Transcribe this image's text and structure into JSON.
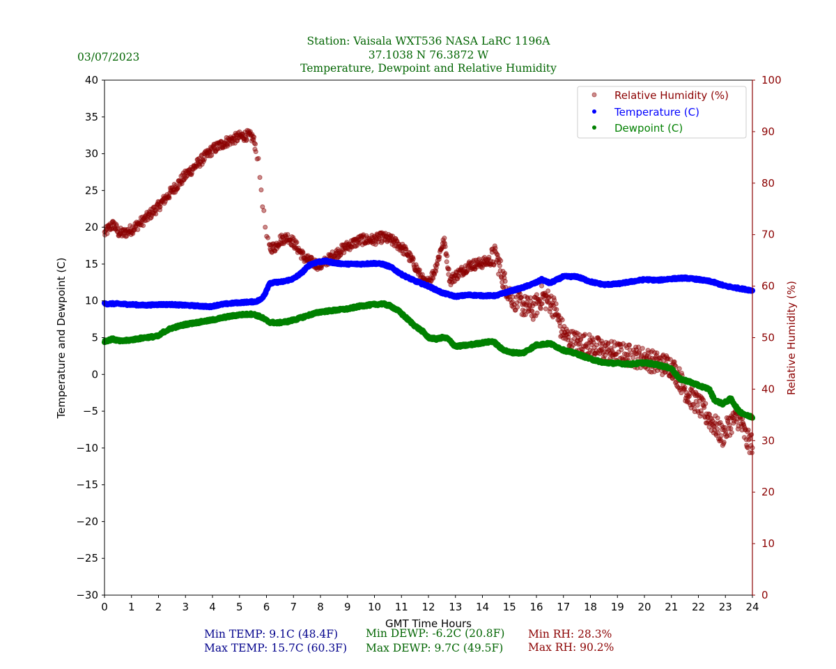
{
  "header": {
    "date": "03/07/2023",
    "title_lines": [
      "Station:  Vaisala WXT536  NASA LaRC 1196A",
      "37.1038 N 76.3872 W",
      "Temperature, Dewpoint and Relative Humidity"
    ]
  },
  "stats": {
    "min_temp": "Min TEMP: 9.1C (48.4F)",
    "max_temp": "Max TEMP: 15.7C (60.3F)",
    "min_dewp": "Min DEWP: -6.2C (20.8F)",
    "max_dewp": "Max DEWP: 9.7C (49.5F)",
    "min_rh": "Min RH: 28.3%",
    "max_rh": "Max RH: 90.2%"
  },
  "colors": {
    "temperature": "#0000ff",
    "dewpoint": "#008000",
    "rh": "#8b0000",
    "text_green": "#006400",
    "text_blue": "#00008b"
  },
  "chart_data": {
    "type": "scatter",
    "title": "Temperature, Dewpoint and Relative Humidity",
    "xlabel": "GMT Time Hours",
    "ylabel": "Temperature and Dewpoint (C)",
    "y2label": "Relative Humidity (%)",
    "xlim": [
      0,
      24
    ],
    "ylim": [
      -30,
      40
    ],
    "y2lim": [
      0,
      100
    ],
    "xticks": [
      "0",
      "1",
      "2",
      "3",
      "4",
      "5",
      "6",
      "7",
      "8",
      "9",
      "10",
      "11",
      "12",
      "13",
      "14",
      "15",
      "16",
      "17",
      "18",
      "19",
      "20",
      "21",
      "22",
      "23",
      "24"
    ],
    "yticks": [
      "40",
      "35",
      "30",
      "25",
      "20",
      "15",
      "10",
      "5",
      "0",
      "−5",
      "−10",
      "−15",
      "−20",
      "−25",
      "−30"
    ],
    "y2ticks": [
      "100",
      "90",
      "80",
      "70",
      "60",
      "50",
      "40",
      "30",
      "20",
      "10",
      "0"
    ],
    "legend": {
      "position": "top-right",
      "entries": [
        "Relative Humidity (%)",
        "Temperature (C)",
        "Dewpoint (C)"
      ]
    },
    "series": [
      {
        "name": "Relative Humidity (%)",
        "axis": "right",
        "x": [
          0,
          0.2,
          0.35,
          0.5,
          0.7,
          1.0,
          1.5,
          2.0,
          2.5,
          3.0,
          3.5,
          4.0,
          4.5,
          5.0,
          5.3,
          5.5,
          5.6,
          5.7,
          5.8,
          5.9,
          6.0,
          6.1,
          6.3,
          6.5,
          6.8,
          7.0,
          7.2,
          7.4,
          7.6,
          8.0,
          8.5,
          9.0,
          9.5,
          10.0,
          10.3,
          10.6,
          10.9,
          11.2,
          11.5,
          11.7,
          11.9,
          12.2,
          12.4,
          12.5,
          12.6,
          12.8,
          13.0,
          13.5,
          14.0,
          14.3,
          14.5,
          14.8,
          15.0,
          15.3,
          15.6,
          15.9,
          16.2,
          16.5,
          16.7,
          16.9,
          17.2,
          17.6,
          18.0,
          18.5,
          19.0,
          19.5,
          20.0,
          20.5,
          21.0,
          21.3,
          21.6,
          22.0,
          22.3,
          22.6,
          22.9,
          23.2,
          23.5,
          23.8,
          24.0
        ],
        "y": [
          70.2,
          71.5,
          72,
          70.5,
          70.2,
          71,
          73,
          75.5,
          78.5,
          81.5,
          84,
          86.5,
          88,
          89,
          89.3,
          88.8,
          87,
          84,
          79,
          74,
          69.5,
          67.5,
          67.5,
          69,
          69.5,
          68.5,
          67,
          65.5,
          64.8,
          64,
          66,
          67.8,
          69,
          69,
          69.5,
          69,
          68,
          66.5,
          64,
          62,
          60.2,
          62.5,
          66,
          68,
          68.5,
          61,
          62,
          64,
          64.5,
          65,
          66,
          61,
          58.5,
          57,
          56,
          55.5,
          58,
          57,
          55.5,
          52,
          49.5,
          49,
          48.5,
          47.5,
          47,
          46.5,
          46,
          45,
          44.5,
          42,
          39,
          37,
          35,
          33,
          31,
          33.5,
          34.5,
          30,
          29.5
        ],
        "jitter": 1.0
      },
      {
        "name": "Temperature (C)",
        "axis": "left",
        "x": [
          0,
          0.5,
          1.0,
          1.5,
          2.0,
          2.5,
          3.0,
          3.5,
          3.9,
          4.3,
          4.8,
          5.2,
          5.6,
          5.8,
          5.95,
          6.1,
          6.3,
          6.6,
          7.0,
          7.3,
          7.6,
          7.9,
          8.2,
          8.6,
          9.0,
          9.5,
          10.0,
          10.3,
          10.6,
          11.0,
          11.5,
          12.0,
          12.5,
          13.0,
          13.5,
          14.0,
          14.5,
          15.0,
          15.5,
          16.0,
          16.2,
          16.5,
          17.0,
          17.5,
          18.0,
          18.5,
          19.0,
          19.5,
          20.0,
          20.5,
          21.0,
          21.5,
          22.0,
          22.5,
          23.0,
          23.5,
          24.0
        ],
        "y": [
          9.6,
          9.6,
          9.5,
          9.4,
          9.5,
          9.5,
          9.4,
          9.3,
          9.2,
          9.5,
          9.7,
          9.8,
          9.9,
          10.2,
          11,
          12.3,
          12.5,
          12.6,
          13,
          13.8,
          14.9,
          15.3,
          15.4,
          15.1,
          15.0,
          15.0,
          15.1,
          15.0,
          14.6,
          13.6,
          12.7,
          12.0,
          11.1,
          10.6,
          10.8,
          10.7,
          10.7,
          11.3,
          11.8,
          12.5,
          12.9,
          12.4,
          13.3,
          13.3,
          12.6,
          12.2,
          12.3,
          12.6,
          12.9,
          12.8,
          13.0,
          13.1,
          12.9,
          12.6,
          12.0,
          11.7,
          11.4
        ],
        "jitter": 0.12
      },
      {
        "name": "Dewpoint (C)",
        "axis": "left",
        "x": [
          0,
          0.3,
          0.6,
          1.0,
          1.5,
          2.0,
          2.2,
          2.5,
          3.0,
          3.5,
          4.0,
          4.5,
          5.0,
          5.5,
          5.8,
          6.1,
          6.4,
          6.8,
          7.2,
          7.6,
          8.0,
          8.5,
          9.0,
          9.5,
          10.0,
          10.3,
          10.6,
          10.9,
          11.2,
          11.5,
          11.8,
          12.0,
          12.3,
          12.5,
          12.7,
          13.0,
          13.5,
          14.0,
          14.4,
          14.7,
          15.0,
          15.5,
          16.0,
          16.5,
          17.0,
          17.5,
          18.0,
          18.5,
          19.0,
          19.5,
          20.0,
          20.5,
          21.0,
          21.3,
          21.6,
          22.0,
          22.4,
          22.6,
          22.9,
          23.2,
          23.5,
          23.8,
          24.0
        ],
        "y": [
          4.5,
          4.8,
          4.5,
          4.7,
          5.0,
          5.2,
          5.8,
          6.3,
          6.8,
          7.1,
          7.4,
          7.8,
          8.1,
          8.2,
          7.8,
          7.1,
          7.0,
          7.2,
          7.6,
          8.1,
          8.5,
          8.7,
          8.9,
          9.3,
          9.5,
          9.6,
          9.3,
          8.6,
          7.6,
          6.6,
          5.8,
          5.0,
          4.8,
          5.0,
          4.9,
          3.8,
          4.0,
          4.3,
          4.5,
          3.5,
          3.0,
          2.9,
          4.0,
          4.2,
          3.3,
          2.8,
          2.1,
          1.6,
          1.5,
          1.4,
          1.6,
          1.3,
          0.8,
          -0.6,
          -0.9,
          -1.5,
          -2.0,
          -3.5,
          -4.0,
          -3.3,
          -5.0,
          -5.6,
          -5.8
        ],
        "jitter": 0.15
      }
    ]
  }
}
